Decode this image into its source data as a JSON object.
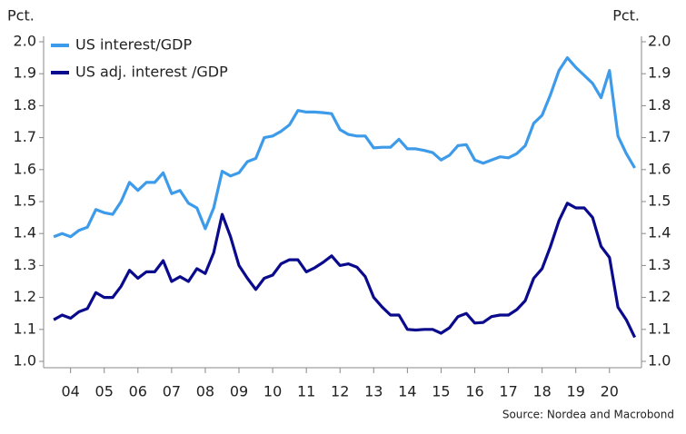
{
  "chart_data": {
    "type": "line",
    "y_label_left": "Pct.",
    "y_label_right": "Pct.",
    "source": "Source: Nordea and Macrobond",
    "x": [
      2004.0,
      2004.25,
      2004.5,
      2004.75,
      2005.0,
      2005.25,
      2005.5,
      2005.75,
      2006.0,
      2006.25,
      2006.5,
      2006.75,
      2007.0,
      2007.25,
      2007.5,
      2007.75,
      2008.0,
      2008.25,
      2008.5,
      2008.75,
      2009.0,
      2009.25,
      2009.5,
      2009.75,
      2010.0,
      2010.25,
      2010.5,
      2010.75,
      2011.0,
      2011.25,
      2011.5,
      2011.75,
      2012.0,
      2012.25,
      2012.5,
      2012.75,
      2013.0,
      2013.25,
      2013.5,
      2013.75,
      2014.0,
      2014.25,
      2014.5,
      2014.75,
      2015.0,
      2015.25,
      2015.5,
      2015.75,
      2016.0,
      2016.25,
      2016.5,
      2016.75,
      2017.0,
      2017.25,
      2017.5,
      2017.75,
      2018.0,
      2018.25,
      2018.5,
      2018.75,
      2019.0,
      2019.25,
      2019.5,
      2019.75,
      2020.0,
      2020.25,
      2020.5,
      2020.75,
      2021.0,
      2021.25
    ],
    "series": [
      {
        "name": "US interest/GDP",
        "color": "#3d9be9",
        "values": [
          1.39,
          1.4,
          1.39,
          1.41,
          1.42,
          1.475,
          1.465,
          1.46,
          1.5,
          1.56,
          1.535,
          1.56,
          1.56,
          1.59,
          1.525,
          1.535,
          1.495,
          1.48,
          1.415,
          1.48,
          1.595,
          1.58,
          1.59,
          1.625,
          1.635,
          1.7,
          1.705,
          1.72,
          1.74,
          1.785,
          1.78,
          1.78,
          1.778,
          1.775,
          1.725,
          1.71,
          1.705,
          1.705,
          1.668,
          1.67,
          1.67,
          1.695,
          1.665,
          1.665,
          1.66,
          1.653,
          1.63,
          1.645,
          1.675,
          1.678,
          1.63,
          1.62,
          1.63,
          1.64,
          1.637,
          1.65,
          1.675,
          1.745,
          1.77,
          1.835,
          1.91,
          1.95,
          1.92,
          1.895,
          1.87,
          1.825,
          1.91,
          1.705,
          1.65,
          1.605
        ]
      },
      {
        "name": "US adj. interest /GDP",
        "color": "#0a0a8c",
        "values": [
          1.13,
          1.145,
          1.135,
          1.155,
          1.165,
          1.215,
          1.2,
          1.2,
          1.235,
          1.285,
          1.26,
          1.28,
          1.28,
          1.315,
          1.25,
          1.265,
          1.25,
          1.29,
          1.275,
          1.34,
          1.46,
          1.39,
          1.3,
          1.26,
          1.225,
          1.26,
          1.27,
          1.305,
          1.318,
          1.318,
          1.28,
          1.293,
          1.31,
          1.33,
          1.3,
          1.305,
          1.295,
          1.265,
          1.2,
          1.17,
          1.145,
          1.145,
          1.1,
          1.098,
          1.1,
          1.1,
          1.088,
          1.105,
          1.14,
          1.15,
          1.12,
          1.122,
          1.14,
          1.145,
          1.145,
          1.162,
          1.19,
          1.26,
          1.29,
          1.36,
          1.44,
          1.495,
          1.48,
          1.48,
          1.45,
          1.36,
          1.325,
          1.17,
          1.13,
          1.075
        ]
      }
    ],
    "xlim": [
      2003.7,
      2021.45
    ],
    "xticks": [
      {
        "value": 2004.5,
        "label": "04"
      },
      {
        "value": 2005.5,
        "label": "05"
      },
      {
        "value": 2006.5,
        "label": "06"
      },
      {
        "value": 2007.5,
        "label": "07"
      },
      {
        "value": 2008.5,
        "label": "08"
      },
      {
        "value": 2009.5,
        "label": "09"
      },
      {
        "value": 2010.5,
        "label": "10"
      },
      {
        "value": 2011.5,
        "label": "11"
      },
      {
        "value": 2012.5,
        "label": "12"
      },
      {
        "value": 2013.5,
        "label": "13"
      },
      {
        "value": 2014.5,
        "label": "14"
      },
      {
        "value": 2015.5,
        "label": "15"
      },
      {
        "value": 2016.5,
        "label": "16"
      },
      {
        "value": 2017.5,
        "label": "17"
      },
      {
        "value": 2018.5,
        "label": "18"
      },
      {
        "value": 2019.5,
        "label": "19"
      },
      {
        "value": 2020.5,
        "label": "20"
      }
    ],
    "ylim": [
      1.0,
      2.0
    ],
    "yticks": [
      {
        "value": 1.0,
        "label": "1.0"
      },
      1.1,
      1.2,
      1.3,
      1.4,
      1.5,
      1.6,
      1.7,
      1.8,
      1.9,
      {
        "value": 2.0,
        "label": "2.0"
      }
    ],
    "y2lim": [
      1.0,
      2.0
    ],
    "y2ticks": [
      {
        "value": 1.0,
        "label": "1.0"
      },
      1.1,
      1.2,
      1.3,
      1.4,
      1.5,
      1.6,
      1.7,
      1.8,
      1.9,
      {
        "value": 2.0,
        "label": "2.0"
      }
    ],
    "legend": "upper left"
  }
}
